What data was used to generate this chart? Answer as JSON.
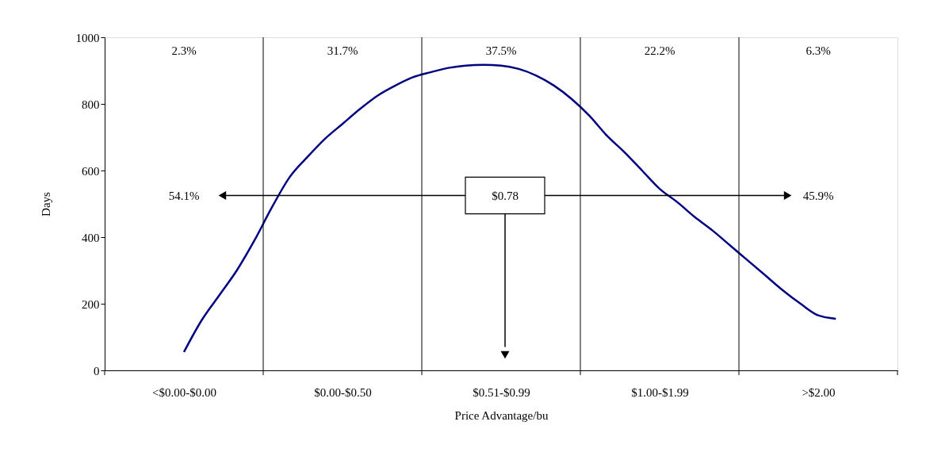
{
  "chart_data": {
    "type": "line",
    "xlabel": "Price Advantage/bu",
    "ylabel": "Days",
    "categories": [
      null,
      null,
      null,
      null,
      "<$0.00-$0.00",
      null,
      null,
      null,
      null,
      null,
      null,
      null,
      null,
      "$0.00-$0.50",
      null,
      null,
      null,
      null,
      null,
      null,
      null,
      null,
      "$0.51-$0.99",
      null,
      null,
      null,
      null,
      null,
      null,
      null,
      null,
      "$1.00-$1.99",
      null,
      null,
      null,
      null,
      null,
      null,
      null,
      null,
      ">$2.00",
      null,
      null,
      null,
      null
    ],
    "series": [
      {
        "color": "#000080",
        "values": [
          null,
          null,
          null,
          null,
          55,
          150,
          225,
          300,
          390,
          490,
          580,
          640,
          695,
          740,
          785,
          825,
          855,
          880,
          895,
          908,
          915,
          917,
          915,
          905,
          885,
          855,
          815,
          765,
          705,
          655,
          600,
          545,
          505,
          460,
          420,
          375,
          330,
          285,
          240,
          200,
          165,
          155,
          null,
          null,
          null
        ]
      }
    ],
    "ylim": [
      0,
      1000
    ],
    "yticks": [
      0,
      200,
      400,
      600,
      800,
      1000
    ],
    "grid": "x",
    "marker": "none",
    "line_style": "solid",
    "annotations": [
      "2.3%",
      "31.7%",
      "37.5%",
      "22.2%",
      "6.3%",
      "54.1%",
      "$0.78",
      "45.9%"
    ]
  }
}
